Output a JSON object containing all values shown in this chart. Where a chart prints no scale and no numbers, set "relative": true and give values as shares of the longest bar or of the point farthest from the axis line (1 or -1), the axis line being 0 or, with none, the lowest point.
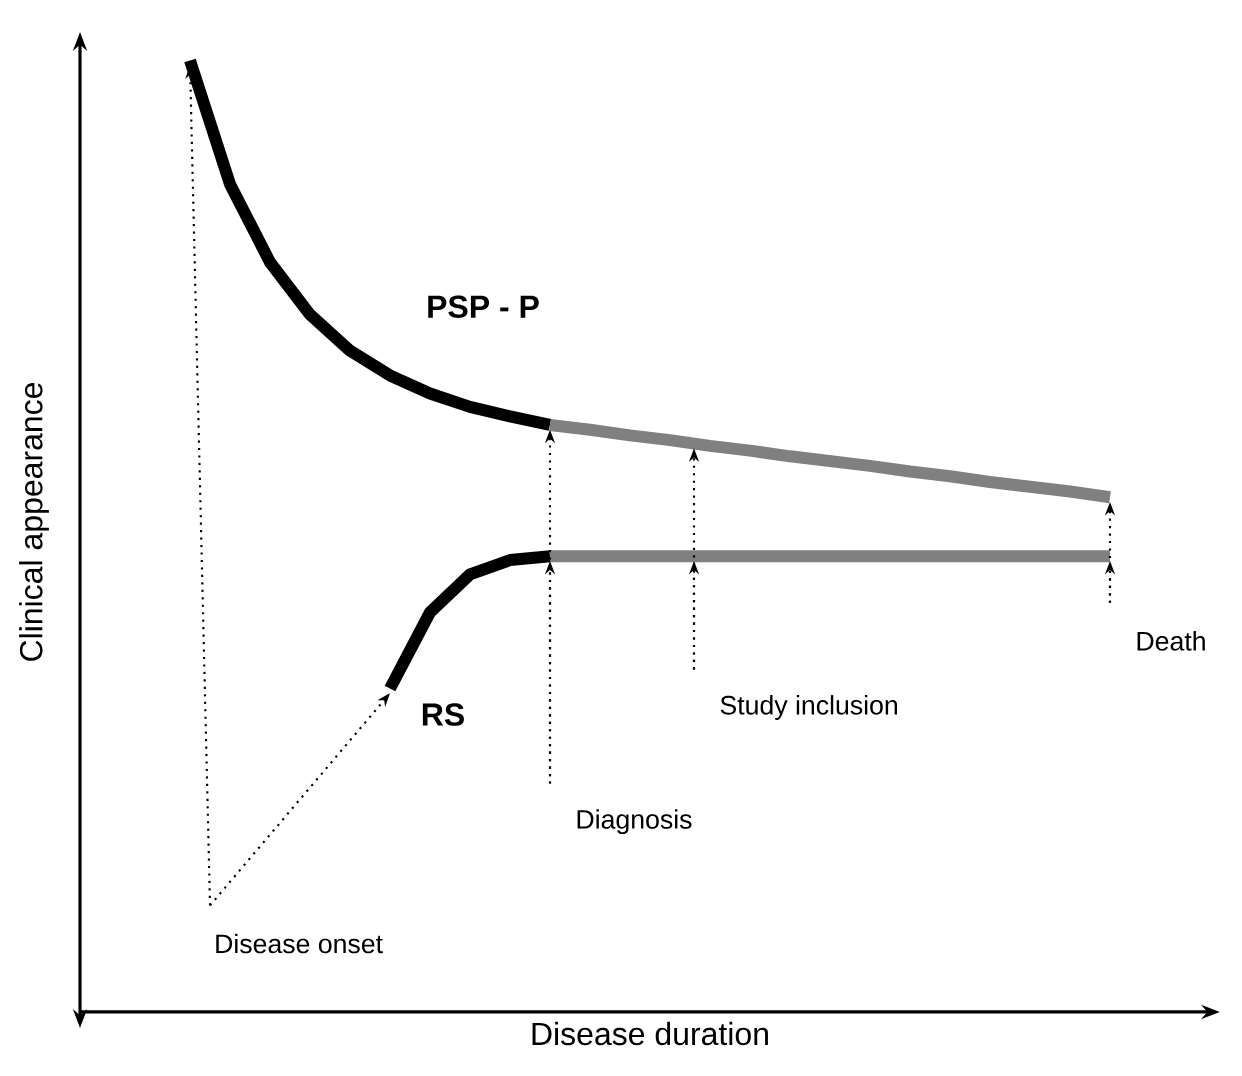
{
  "chart_data": {
    "type": "line",
    "relative": true,
    "xlabel": "Disease duration",
    "ylabel": "Clinical appearance",
    "tick_labels": false,
    "marker": "none",
    "line_style": "solid",
    "categories": [
      null,
      null,
      null,
      null,
      null,
      null,
      null,
      null,
      null,
      null,
      null,
      null,
      null,
      null,
      null,
      null,
      null,
      null,
      null,
      null,
      null,
      null,
      null,
      null
    ],
    "series": [
      {
        "name": "PSP - P",
        "color": "#000000",
        "values": [
          1.0,
          0.87,
          0.788,
          0.733,
          0.695,
          0.669,
          0.65,
          0.636,
          0.626,
          0.617,
          null,
          null,
          null,
          null,
          null,
          null,
          null,
          null,
          null,
          null,
          null,
          null,
          null,
          null
        ]
      },
      {
        "color": "#808080",
        "values": [
          null,
          null,
          null,
          null,
          null,
          null,
          null,
          null,
          null,
          0.617,
          0.612,
          0.606,
          0.601,
          0.595,
          0.59,
          0.584,
          0.579,
          0.574,
          0.568,
          0.563,
          0.557,
          0.552,
          0.547,
          0.541
        ]
      },
      {
        "name": "RS",
        "color": "#000000",
        "values": [
          null,
          null,
          null,
          null,
          null,
          0.34,
          0.42,
          0.46,
          0.475,
          0.479,
          null,
          null,
          null,
          null,
          null,
          null,
          null,
          null,
          null,
          null,
          null,
          null,
          null,
          null
        ]
      },
      {
        "color": "#808080",
        "values": [
          null,
          null,
          null,
          null,
          null,
          null,
          null,
          null,
          null,
          0.479,
          0.479,
          0.479,
          0.479,
          0.479,
          0.479,
          0.479,
          0.479,
          0.479,
          0.479,
          0.479,
          0.479,
          0.479,
          0.479,
          0.479
        ]
      }
    ],
    "annotations": [
      "Disease onset",
      "Diagnosis",
      "Study inclusion",
      "Death"
    ]
  }
}
